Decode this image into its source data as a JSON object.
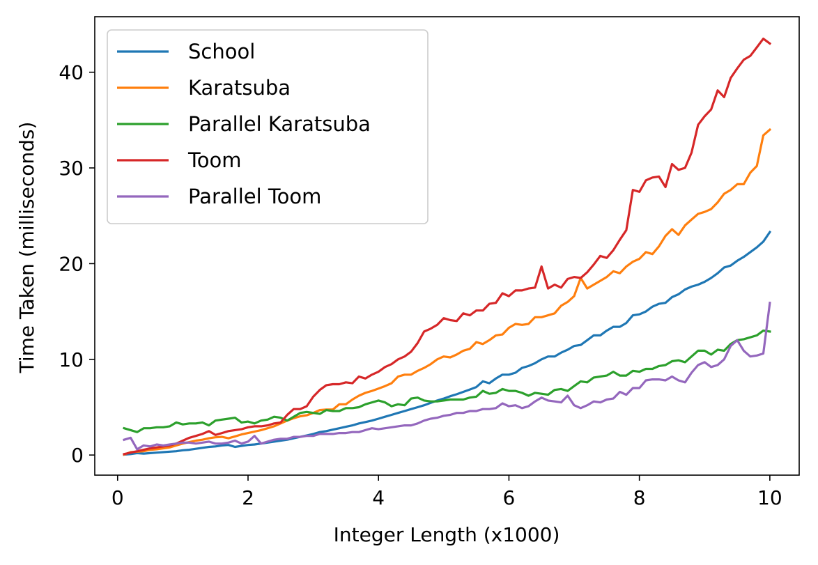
{
  "chart_data": {
    "type": "line",
    "title": "",
    "xlabel": "Integer Length (x1000)",
    "ylabel": "Time Taken (milliseconds)",
    "xlim": [
      -0.35,
      10.45
    ],
    "ylim": [
      -2.1,
      45.8
    ],
    "xticks": [
      0,
      2,
      4,
      6,
      8,
      10
    ],
    "yticks": [
      0,
      10,
      20,
      30,
      40
    ],
    "grid": false,
    "legend_position": "top-left",
    "x": [
      0.1,
      0.2,
      0.3,
      0.4,
      0.5,
      0.6,
      0.7,
      0.8,
      0.9,
      1.0,
      1.1,
      1.2,
      1.3,
      1.4,
      1.5,
      1.6,
      1.7,
      1.8,
      1.9,
      2.0,
      2.1,
      2.2,
      2.3,
      2.4,
      2.5,
      2.6,
      2.7,
      2.8,
      2.9,
      3.0,
      3.1,
      3.2,
      3.3,
      3.4,
      3.5,
      3.6,
      3.7,
      3.8,
      3.9,
      4.0,
      4.1,
      4.2,
      4.3,
      4.4,
      4.5,
      4.6,
      4.7,
      4.8,
      4.9,
      5.0,
      5.1,
      5.2,
      5.3,
      5.4,
      5.5,
      5.6,
      5.7,
      5.8,
      5.9,
      6.0,
      6.1,
      6.2,
      6.3,
      6.4,
      6.5,
      6.6,
      6.7,
      6.8,
      6.9,
      7.0,
      7.1,
      7.2,
      7.3,
      7.4,
      7.5,
      7.6,
      7.7,
      7.8,
      7.9,
      8.0,
      8.1,
      8.2,
      8.3,
      8.4,
      8.5,
      8.6,
      8.7,
      8.8,
      8.9,
      9.0,
      9.1,
      9.2,
      9.3,
      9.4,
      9.5,
      9.6,
      9.7,
      9.8,
      9.9,
      10.0
    ],
    "series": [
      {
        "name": "School",
        "color": "#1f77b4",
        "values": [
          0.05,
          0.1,
          0.2,
          0.15,
          0.2,
          0.25,
          0.3,
          0.35,
          0.4,
          0.5,
          0.55,
          0.65,
          0.75,
          0.85,
          0.9,
          1.0,
          1.05,
          0.85,
          0.95,
          1.05,
          1.1,
          1.2,
          1.3,
          1.4,
          1.5,
          1.6,
          1.75,
          1.9,
          2.05,
          2.2,
          2.4,
          2.5,
          2.65,
          2.8,
          2.95,
          3.1,
          3.3,
          3.45,
          3.6,
          3.8,
          4.0,
          4.2,
          4.4,
          4.6,
          4.8,
          5.0,
          5.2,
          5.45,
          5.7,
          5.9,
          6.15,
          6.35,
          6.6,
          6.85,
          7.1,
          7.7,
          7.5,
          8.0,
          8.4,
          8.4,
          8.6,
          9.1,
          9.3,
          9.6,
          10.0,
          10.3,
          10.3,
          10.7,
          11.0,
          11.4,
          11.5,
          12.0,
          12.5,
          12.5,
          13.0,
          13.4,
          13.4,
          13.8,
          14.6,
          14.7,
          15.0,
          15.5,
          15.8,
          15.9,
          16.5,
          16.8,
          17.3,
          17.6,
          17.8,
          18.1,
          18.5,
          19.0,
          19.6,
          19.8,
          20.3,
          20.7,
          21.2,
          21.7,
          22.3,
          23.3
        ]
      },
      {
        "name": "Karatsuba",
        "color": "#ff7f0e",
        "values": [
          0.05,
          0.3,
          0.35,
          0.4,
          0.55,
          0.6,
          0.7,
          0.8,
          1.0,
          1.2,
          1.35,
          1.5,
          1.6,
          1.75,
          1.85,
          1.9,
          1.75,
          1.95,
          2.15,
          2.3,
          2.45,
          2.6,
          2.8,
          3.0,
          3.3,
          3.6,
          3.85,
          4.05,
          4.15,
          4.4,
          4.7,
          4.75,
          4.75,
          5.3,
          5.3,
          5.8,
          6.2,
          6.5,
          6.7,
          6.95,
          7.2,
          7.5,
          8.2,
          8.4,
          8.4,
          8.8,
          9.1,
          9.5,
          10.0,
          10.3,
          10.2,
          10.5,
          10.9,
          11.1,
          11.8,
          11.6,
          12.0,
          12.5,
          12.6,
          13.3,
          13.7,
          13.6,
          13.7,
          14.4,
          14.4,
          14.6,
          14.8,
          15.6,
          16.0,
          16.6,
          18.5,
          17.4,
          17.8,
          18.2,
          18.6,
          19.2,
          19.0,
          19.7,
          20.2,
          20.5,
          21.2,
          21.0,
          21.8,
          22.9,
          23.6,
          23.0,
          24.0,
          24.6,
          25.2,
          25.4,
          25.7,
          26.4,
          27.3,
          27.7,
          28.3,
          28.3,
          29.5,
          30.2,
          33.4,
          34.0
        ]
      },
      {
        "name": "Parallel Karatsuba",
        "color": "#2ca02c",
        "values": [
          2.8,
          2.6,
          2.4,
          2.8,
          2.8,
          2.9,
          2.9,
          3.0,
          3.4,
          3.2,
          3.3,
          3.3,
          3.4,
          3.1,
          3.6,
          3.7,
          3.8,
          3.9,
          3.4,
          3.5,
          3.3,
          3.6,
          3.7,
          4.0,
          3.9,
          3.6,
          4.0,
          4.4,
          4.5,
          4.4,
          4.3,
          4.7,
          4.6,
          4.6,
          4.9,
          4.9,
          5.0,
          5.3,
          5.5,
          5.7,
          5.5,
          5.1,
          5.3,
          5.2,
          5.9,
          6.0,
          5.7,
          5.6,
          5.6,
          5.7,
          5.8,
          5.8,
          5.8,
          6.0,
          6.1,
          6.7,
          6.4,
          6.5,
          6.9,
          6.7,
          6.7,
          6.5,
          6.2,
          6.5,
          6.4,
          6.3,
          6.8,
          6.9,
          6.7,
          7.2,
          7.7,
          7.6,
          8.1,
          8.2,
          8.3,
          8.7,
          8.3,
          8.3,
          8.8,
          8.7,
          9.0,
          9.0,
          9.3,
          9.4,
          9.8,
          9.9,
          9.7,
          10.3,
          10.9,
          10.9,
          10.5,
          11.0,
          10.9,
          11.6,
          12.0,
          12.1,
          12.3,
          12.5,
          13.0,
          12.9
        ]
      },
      {
        "name": "Toom",
        "color": "#d62728",
        "values": [
          0.1,
          0.25,
          0.4,
          0.55,
          0.7,
          0.8,
          0.9,
          1.0,
          1.2,
          1.5,
          1.8,
          2.0,
          2.2,
          2.5,
          2.1,
          2.3,
          2.5,
          2.6,
          2.7,
          2.9,
          3.0,
          3.0,
          3.1,
          3.3,
          3.4,
          4.2,
          4.8,
          4.8,
          5.1,
          6.1,
          6.8,
          7.3,
          7.4,
          7.4,
          7.6,
          7.5,
          8.2,
          8.0,
          8.4,
          8.7,
          9.2,
          9.5,
          10.0,
          10.3,
          10.8,
          11.7,
          12.9,
          13.2,
          13.6,
          14.3,
          14.1,
          14.0,
          14.8,
          14.6,
          15.1,
          15.1,
          15.8,
          15.9,
          16.9,
          16.6,
          17.2,
          17.2,
          17.4,
          17.5,
          19.7,
          17.4,
          17.8,
          17.5,
          18.4,
          18.6,
          18.5,
          19.1,
          19.9,
          20.8,
          20.6,
          21.4,
          22.5,
          23.5,
          27.7,
          27.5,
          28.7,
          29.0,
          29.1,
          28.0,
          30.4,
          29.8,
          30.0,
          31.6,
          34.5,
          35.4,
          36.1,
          38.1,
          37.4,
          39.4,
          40.4,
          41.3,
          41.7,
          42.6,
          43.5,
          43.0
        ]
      },
      {
        "name": "Parallel Toom",
        "color": "#9467bd",
        "values": [
          1.6,
          1.8,
          0.6,
          1.0,
          0.9,
          1.1,
          1.0,
          1.1,
          1.2,
          1.3,
          1.3,
          1.2,
          1.3,
          1.4,
          1.2,
          1.2,
          1.3,
          1.5,
          1.2,
          1.4,
          2.0,
          1.2,
          1.4,
          1.6,
          1.7,
          1.7,
          1.9,
          1.9,
          2.0,
          2.0,
          2.2,
          2.2,
          2.2,
          2.3,
          2.3,
          2.4,
          2.4,
          2.6,
          2.8,
          2.7,
          2.8,
          2.9,
          3.0,
          3.1,
          3.1,
          3.3,
          3.6,
          3.8,
          3.9,
          4.1,
          4.2,
          4.4,
          4.4,
          4.6,
          4.6,
          4.8,
          4.8,
          4.9,
          5.4,
          5.1,
          5.2,
          4.9,
          5.1,
          5.6,
          6.0,
          5.7,
          5.6,
          5.5,
          6.2,
          5.2,
          4.9,
          5.2,
          5.6,
          5.5,
          5.8,
          5.9,
          6.6,
          6.3,
          7.0,
          7.0,
          7.8,
          7.9,
          7.9,
          7.8,
          8.2,
          7.8,
          7.6,
          8.6,
          9.4,
          9.7,
          9.2,
          9.4,
          10.0,
          11.4,
          12.0,
          10.9,
          10.3,
          10.4,
          10.6,
          15.9
        ]
      }
    ]
  }
}
